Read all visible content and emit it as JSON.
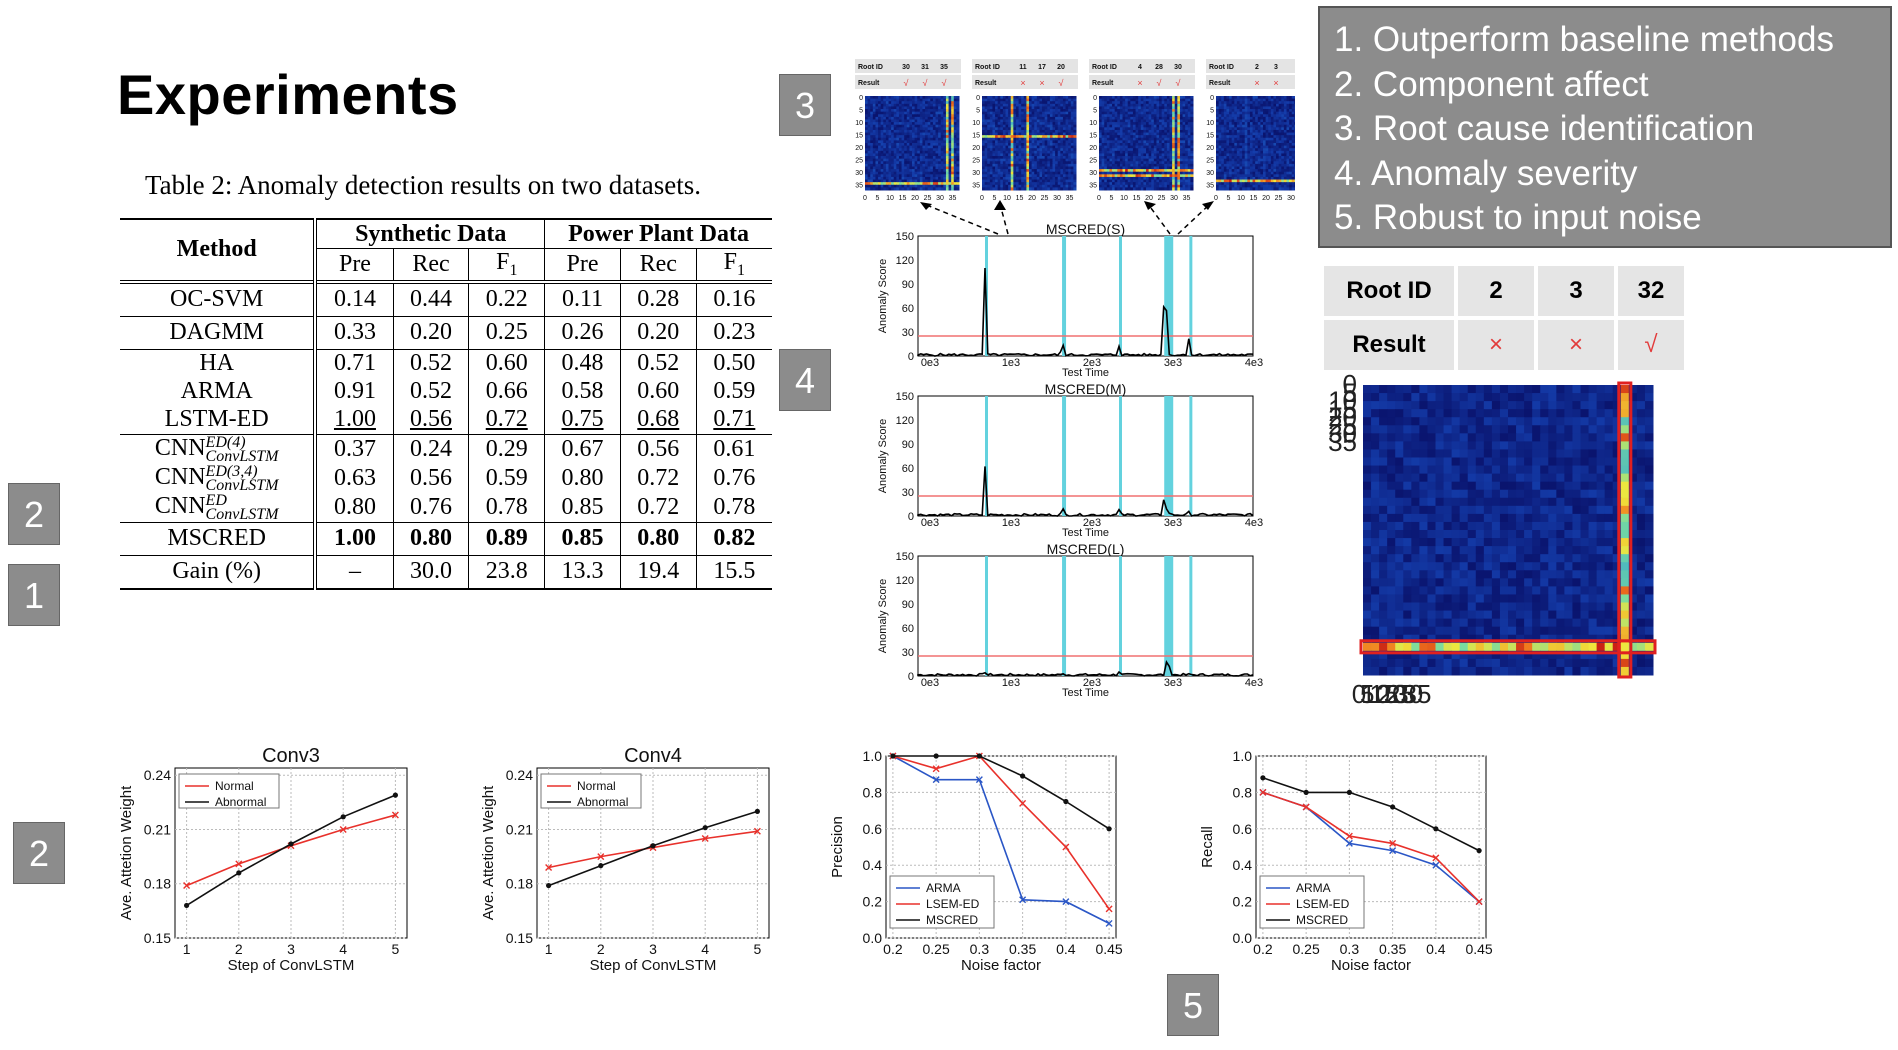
{
  "title": "Experiments",
  "caption": "Table 2: Anomaly detection results on two datasets.",
  "tags": {
    "t3": "3",
    "t4": "4",
    "t2a": "2",
    "t1": "1",
    "t2b": "2",
    "t5": "5"
  },
  "goals": [
    "1. Outperform baseline methods",
    "2. Component affect",
    "3. Root cause identification",
    "4. Anomaly severity",
    "5. Robust to input noise"
  ],
  "table": {
    "method_header": "Method",
    "group1": "Synthetic Data",
    "group2": "Power Plant Data",
    "cols": [
      "Pre",
      "Rec",
      "F",
      "Pre",
      "Rec",
      "F"
    ],
    "f_sub": "1",
    "rows": [
      {
        "name": "OC-SVM",
        "v": [
          "0.14",
          "0.44",
          "0.22",
          "0.11",
          "0.28",
          "0.16"
        ]
      },
      {
        "name": "DAGMM",
        "v": [
          "0.33",
          "0.20",
          "0.25",
          "0.26",
          "0.20",
          "0.23"
        ]
      },
      {
        "name": "HA",
        "v": [
          "0.71",
          "0.52",
          "0.60",
          "0.48",
          "0.52",
          "0.50"
        ]
      },
      {
        "name": "ARMA",
        "v": [
          "0.91",
          "0.52",
          "0.66",
          "0.58",
          "0.60",
          "0.59"
        ]
      },
      {
        "name": "LSTM-ED",
        "v": [
          "1.00",
          "0.56",
          "0.72",
          "0.75",
          "0.68",
          "0.71"
        ]
      },
      {
        "name": "CNN",
        "sup": "ED(4)",
        "sub": "ConvLSTM",
        "v": [
          "0.37",
          "0.24",
          "0.29",
          "0.67",
          "0.56",
          "0.61"
        ]
      },
      {
        "name": "CNN",
        "sup": "ED(3,4)",
        "sub": "ConvLSTM",
        "v": [
          "0.63",
          "0.56",
          "0.59",
          "0.80",
          "0.72",
          "0.76"
        ]
      },
      {
        "name": "CNN",
        "sup": "ED",
        "sub": "ConvLSTM",
        "v": [
          "0.80",
          "0.76",
          "0.78",
          "0.85",
          "0.72",
          "0.78"
        ]
      },
      {
        "name": "MSCRED",
        "v": [
          "1.00",
          "0.80",
          "0.89",
          "0.85",
          "0.80",
          "0.82"
        ]
      },
      {
        "name": "Gain (%)",
        "v": [
          "–",
          "30.0",
          "23.8",
          "13.3",
          "19.4",
          "15.5"
        ]
      }
    ]
  },
  "root_table": {
    "header": "Root ID",
    "ids": [
      "2",
      "3",
      "32"
    ],
    "result_label": "Result",
    "results": [
      "×",
      "×",
      "√"
    ]
  },
  "mini_tables": [
    {
      "id_label": "Root ID",
      "ids": [
        "30",
        "31",
        "35"
      ],
      "res_label": "Result",
      "res": [
        "√",
        "√",
        "√"
      ]
    },
    {
      "id_label": "Root ID",
      "ids": [
        "11",
        "17",
        "20"
      ],
      "res_label": "Result",
      "res": [
        "×",
        "×",
        "√"
      ]
    },
    {
      "id_label": "Root ID",
      "ids": [
        "4",
        "28",
        "30"
      ],
      "res_label": "Result",
      "res": [
        "×",
        "√",
        "√"
      ]
    },
    {
      "id_label": "Root ID",
      "ids": [
        "2",
        "3"
      ],
      "res_label": "Result",
      "res": [
        "×",
        "×"
      ]
    }
  ],
  "heatmap_ticks": [
    "0",
    "5",
    "10",
    "15",
    "20",
    "25",
    "30",
    "35"
  ],
  "score_panels": [
    {
      "title": "MSCRED(S)",
      "ylabel": "Anomaly Score",
      "xlabel": "Test Time",
      "yticks": [
        "150",
        "120",
        "90",
        "60",
        "30",
        "0"
      ],
      "xticks": [
        "0e3",
        "1e3",
        "2e3",
        "3e3",
        "4e3"
      ]
    },
    {
      "title": "MSCRED(M)",
      "ylabel": "Anomaly Score",
      "xlabel": "Test Time",
      "yticks": [
        "150",
        "120",
        "90",
        "60",
        "30",
        "0"
      ],
      "xticks": [
        "0e3",
        "1e3",
        "2e3",
        "3e3",
        "4e3"
      ]
    },
    {
      "title": "MSCRED(L)",
      "ylabel": "Anomaly Score",
      "xlabel": "Test Time",
      "yticks": [
        "150",
        "120",
        "90",
        "60",
        "30",
        "0"
      ],
      "xticks": [
        "0e3",
        "1e3",
        "2e3",
        "3e3",
        "4e3"
      ]
    }
  ],
  "chart_data": [
    {
      "type": "line",
      "title": "Conv3",
      "xlabel": "Step of ConvLSTM",
      "ylabel": "Ave. Attetion Weight",
      "x": [
        1,
        2,
        3,
        4,
        5
      ],
      "ylim": [
        0.15,
        0.24
      ],
      "yticks": [
        "0.24",
        "0.21",
        "0.18",
        "0.15"
      ],
      "series": [
        {
          "name": "Normal",
          "color": "#e8312b",
          "values": [
            0.179,
            0.191,
            0.201,
            0.21,
            0.218
          ]
        },
        {
          "name": "Abnormal",
          "color": "#111111",
          "values": [
            0.168,
            0.186,
            0.202,
            0.217,
            0.229
          ]
        }
      ]
    },
    {
      "type": "line",
      "title": "Conv4",
      "xlabel": "Step of ConvLSTM",
      "ylabel": "Ave. Attetion Weight",
      "x": [
        1,
        2,
        3,
        4,
        5
      ],
      "ylim": [
        0.15,
        0.24
      ],
      "yticks": [
        "0.24",
        "0.21",
        "0.18",
        "0.15"
      ],
      "series": [
        {
          "name": "Normal",
          "color": "#e8312b",
          "values": [
            0.189,
            0.195,
            0.2,
            0.205,
            0.209
          ]
        },
        {
          "name": "Abnormal",
          "color": "#111111",
          "values": [
            0.179,
            0.19,
            0.201,
            0.211,
            0.22
          ]
        }
      ]
    },
    {
      "type": "line",
      "title": "",
      "xlabel": "Noise factor",
      "ylabel": "Precision",
      "x": [
        0.2,
        0.25,
        0.3,
        0.35,
        0.4,
        0.45
      ],
      "xticks": [
        "0.2",
        "0.25",
        "0.3",
        "0.35",
        "0.4",
        "0.45"
      ],
      "ylim": [
        0,
        1
      ],
      "yticks": [
        "1.0",
        "0.8",
        "0.6",
        "0.4",
        "0.2",
        "0.0"
      ],
      "series": [
        {
          "name": "ARMA",
          "color": "#2a56c6",
          "values": [
            1.0,
            0.87,
            0.87,
            0.21,
            0.2,
            0.08
          ]
        },
        {
          "name": "LSEM-ED",
          "color": "#e8312b",
          "values": [
            1.0,
            0.93,
            1.0,
            0.74,
            0.5,
            0.16
          ]
        },
        {
          "name": "MSCRED",
          "color": "#111111",
          "values": [
            1.0,
            1.0,
            1.0,
            0.89,
            0.75,
            0.6
          ]
        }
      ]
    },
    {
      "type": "line",
      "title": "",
      "xlabel": "Noise factor",
      "ylabel": "Recall",
      "x": [
        0.2,
        0.25,
        0.3,
        0.35,
        0.4,
        0.45
      ],
      "xticks": [
        "0.2",
        "0.25",
        "0.3",
        "0.35",
        "0.4",
        "0.45"
      ],
      "ylim": [
        0,
        1
      ],
      "yticks": [
        "1.0",
        "0.8",
        "0.6",
        "0.4",
        "0.2",
        "0.0"
      ],
      "series": [
        {
          "name": "ARMA",
          "color": "#2a56c6",
          "values": [
            0.8,
            0.72,
            0.52,
            0.48,
            0.4,
            0.2
          ]
        },
        {
          "name": "LSEM-ED",
          "color": "#e8312b",
          "values": [
            0.8,
            0.72,
            0.56,
            0.52,
            0.44,
            0.2
          ]
        },
        {
          "name": "MSCRED",
          "color": "#111111",
          "values": [
            0.88,
            0.8,
            0.8,
            0.72,
            0.6,
            0.48
          ]
        }
      ]
    }
  ]
}
